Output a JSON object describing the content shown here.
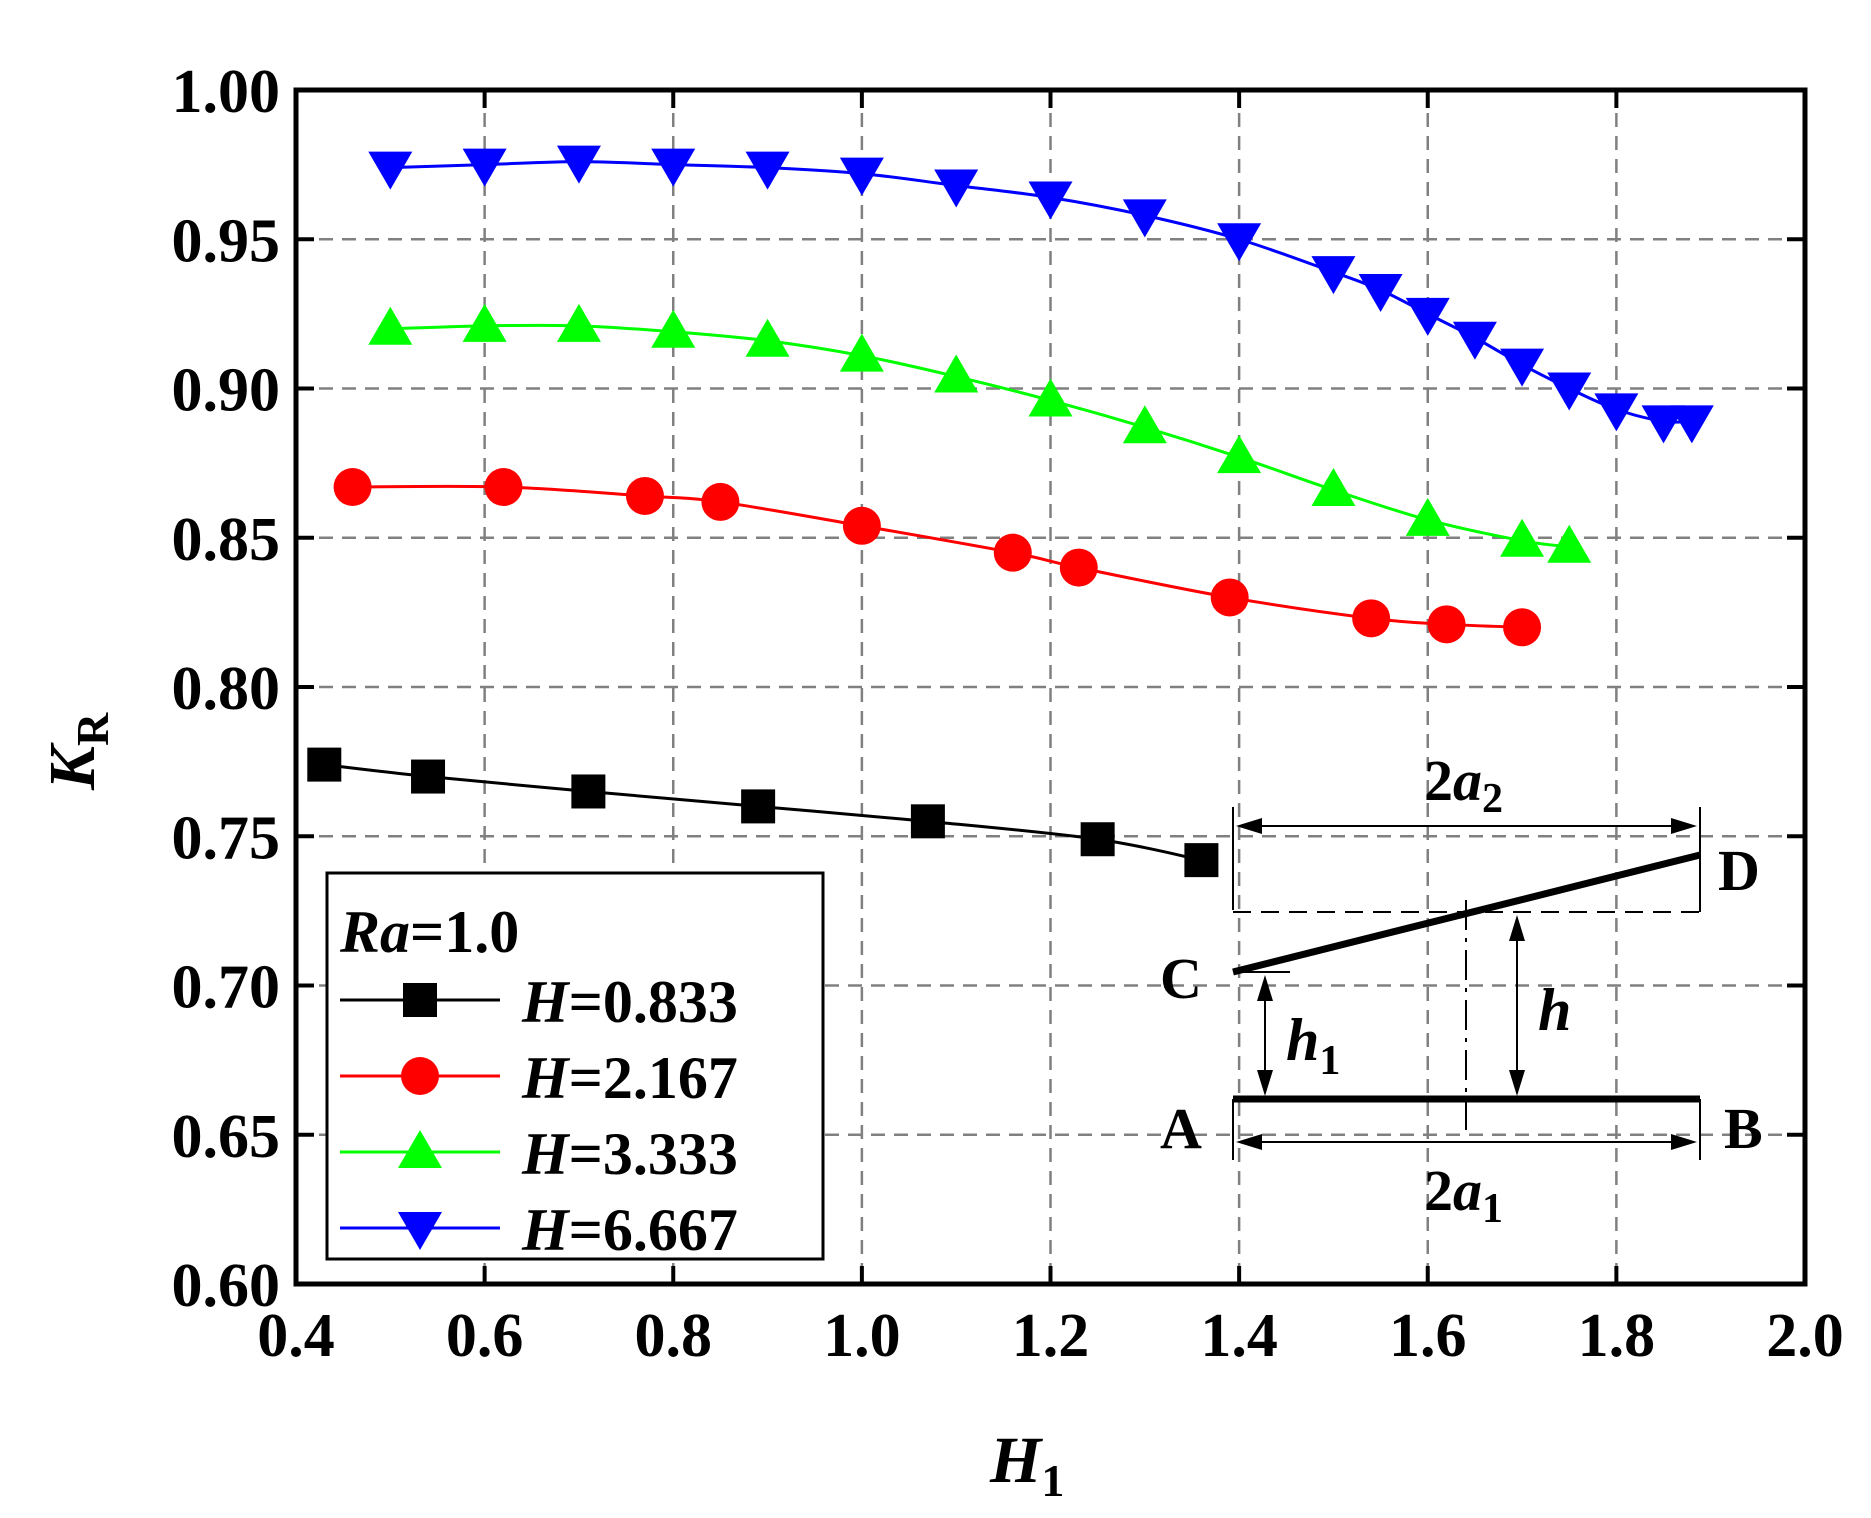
{
  "chart_data": {
    "type": "line",
    "title": "",
    "xlabel": "H",
    "xlabel_sub": "1",
    "ylabel": "K",
    "ylabel_sub": "R",
    "xlim": [
      0.4,
      2.0
    ],
    "ylim": [
      0.6,
      1.0
    ],
    "xticks": [
      "0.4",
      "0.6",
      "0.8",
      "1.0",
      "1.2",
      "1.4",
      "1.6",
      "1.8",
      "2.0"
    ],
    "yticks": [
      "0.60",
      "0.65",
      "0.70",
      "0.75",
      "0.80",
      "0.85",
      "0.90",
      "0.95",
      "1.00"
    ],
    "grid": true,
    "legend_position": "bottom-left",
    "legend_title_prefix": "Ra",
    "legend_title_value": "=1.0",
    "series": [
      {
        "name_prefix": "H",
        "name_value": "=0.833",
        "color": "#000000",
        "marker": "square",
        "x": [
          0.43,
          0.54,
          0.71,
          0.89,
          1.07,
          1.25,
          1.36
        ],
        "y": [
          0.774,
          0.77,
          0.765,
          0.76,
          0.755,
          0.749,
          0.742
        ]
      },
      {
        "name_prefix": "H",
        "name_value": "=2.167",
        "color": "#ff0000",
        "marker": "circle",
        "x": [
          0.46,
          0.62,
          0.77,
          0.85,
          1.0,
          1.16,
          1.23,
          1.39,
          1.54,
          1.62,
          1.7
        ],
        "y": [
          0.867,
          0.867,
          0.864,
          0.862,
          0.854,
          0.845,
          0.84,
          0.83,
          0.823,
          0.821,
          0.82
        ]
      },
      {
        "name_prefix": "H",
        "name_value": "=3.333",
        "color": "#00ff00",
        "marker": "triangle-up",
        "x": [
          0.5,
          0.6,
          0.7,
          0.8,
          0.9,
          1.0,
          1.1,
          1.2,
          1.3,
          1.4,
          1.5,
          1.6,
          1.7,
          1.75
        ],
        "y": [
          0.92,
          0.921,
          0.921,
          0.919,
          0.916,
          0.911,
          0.904,
          0.896,
          0.887,
          0.877,
          0.866,
          0.856,
          0.849,
          0.847
        ]
      },
      {
        "name_prefix": "H",
        "name_value": "=6.667",
        "color": "#0000ff",
        "marker": "triangle-down",
        "x": [
          0.5,
          0.6,
          0.7,
          0.8,
          0.9,
          1.0,
          1.1,
          1.2,
          1.3,
          1.4,
          1.5,
          1.55,
          1.6,
          1.65,
          1.7,
          1.75,
          1.8,
          1.85,
          1.88
        ],
        "y": [
          0.974,
          0.975,
          0.976,
          0.975,
          0.974,
          0.972,
          0.968,
          0.964,
          0.958,
          0.95,
          0.939,
          0.933,
          0.925,
          0.917,
          0.908,
          0.9,
          0.893,
          0.889,
          0.889
        ]
      }
    ]
  },
  "inset": {
    "top_dim_prefix": "2",
    "top_dim_var": "a",
    "top_dim_sub": "2",
    "bottom_dim_prefix": "2",
    "bottom_dim_var": "a",
    "bottom_dim_sub": "1",
    "label_a": "A",
    "label_b": "B",
    "label_c": "C",
    "label_d": "D",
    "h1_var": "h",
    "h1_sub": "1",
    "h_var": "h"
  }
}
